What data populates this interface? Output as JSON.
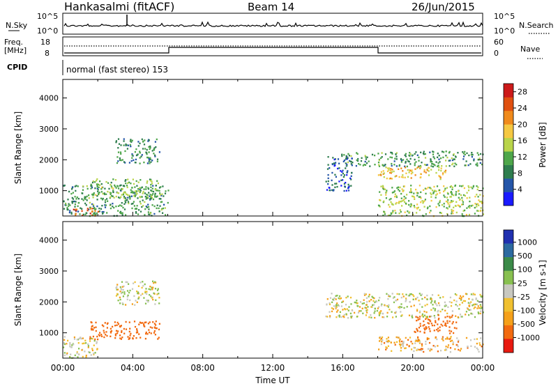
{
  "header": {
    "station": "Hankasalmi (fitACF)",
    "beam": "Beam 14",
    "date": "26/Jun/2015"
  },
  "noise_panel": {
    "left_label": "N.Sky",
    "left_ticks": [
      "10^5",
      "10^0"
    ],
    "right_ticks": [
      "10^5",
      "10^0"
    ],
    "right_label": "N.Search"
  },
  "freq_panel": {
    "left_label_1": "Freq.",
    "left_label_2": "[MHz]",
    "left_ticks": [
      "18",
      "8"
    ],
    "right_ticks": [
      "60",
      "0"
    ],
    "right_label": "Nave"
  },
  "cpid": {
    "label": "CPID",
    "text": "normal (fast stereo) 153"
  },
  "x_axis": {
    "ticks": [
      "00:00",
      "04:00",
      "08:00",
      "12:00",
      "16:00",
      "20:00",
      "00:00"
    ],
    "label": "Time UT"
  },
  "colors": {
    "power_scale": [
      "#1a1aff",
      "#2455a8",
      "#2e7d4e",
      "#4ea64a",
      "#b9d44a",
      "#f5c842",
      "#f08a1c",
      "#e05010",
      "#cc1a1a"
    ],
    "velocity_scale": [
      "#e81a10",
      "#f26a10",
      "#f5a01a",
      "#f0c030",
      "#c8c8c0",
      "#88c050",
      "#3b8a48",
      "#2c6aa0",
      "#2030b0"
    ]
  },
  "chart_data": [
    {
      "type": "heatmap",
      "title": "Power",
      "xlabel": "Time UT",
      "ylabel": "Slant Range [km]",
      "xlim": [
        "00:00",
        "24:00"
      ],
      "ylim": [
        180,
        4600
      ],
      "y_ticks": [
        "1000",
        "2000",
        "3000",
        "4000"
      ],
      "colorbar": {
        "label": "Power [dB]",
        "ticks": [
          "4",
          "8",
          "12",
          "16",
          "20",
          "24",
          "28"
        ],
        "range": [
          0,
          30
        ]
      },
      "echo_regions": [
        {
          "t_start": 0.0,
          "t_end": 6.0,
          "range_min": 200,
          "range_max": 1200,
          "power_db": 10
        },
        {
          "t_start": 0.5,
          "t_end": 2.0,
          "range_min": 200,
          "range_max": 450,
          "power_db": 24
        },
        {
          "t_start": 1.5,
          "t_end": 5.5,
          "range_min": 800,
          "range_max": 1400,
          "power_db": 13
        },
        {
          "t_start": 3.0,
          "t_end": 5.5,
          "range_min": 1900,
          "range_max": 2700,
          "power_db": 9
        },
        {
          "t_start": 15.0,
          "t_end": 16.5,
          "range_min": 1000,
          "range_max": 2200,
          "power_db": 6
        },
        {
          "t_start": 16.0,
          "t_end": 24.0,
          "range_min": 1800,
          "range_max": 2300,
          "power_db": 10
        },
        {
          "t_start": 18.0,
          "t_end": 22.0,
          "range_min": 1400,
          "range_max": 1800,
          "power_db": 18
        },
        {
          "t_start": 18.0,
          "t_end": 24.0,
          "range_min": 200,
          "range_max": 1200,
          "power_db": 14
        }
      ]
    },
    {
      "type": "heatmap",
      "title": "Velocity",
      "xlabel": "Time UT",
      "ylabel": "Slant Range [km]",
      "xlim": [
        "00:00",
        "24:00"
      ],
      "ylim": [
        180,
        4600
      ],
      "y_ticks": [
        "1000",
        "2000",
        "3000",
        "4000"
      ],
      "colorbar": {
        "label": "Velocity [m s-1]",
        "ticks": [
          "1000",
          "500",
          "100",
          "25",
          "-25",
          "-100",
          "-500",
          "-1000"
        ]
      },
      "echo_regions": [
        {
          "t_start": 0.0,
          "t_end": 2.0,
          "range_min": 200,
          "range_max": 900,
          "velocity": 0
        },
        {
          "t_start": 1.5,
          "t_end": 5.5,
          "range_min": 800,
          "range_max": 1400,
          "velocity": -200
        },
        {
          "t_start": 3.0,
          "t_end": 5.5,
          "range_min": 1900,
          "range_max": 2700,
          "velocity": 0
        },
        {
          "t_start": 15.0,
          "t_end": 24.0,
          "range_min": 1500,
          "range_max": 2300,
          "velocity": 0
        },
        {
          "t_start": 20.0,
          "t_end": 22.5,
          "range_min": 1000,
          "range_max": 1600,
          "velocity": -250
        },
        {
          "t_start": 18.0,
          "t_end": 24.0,
          "range_min": 400,
          "range_max": 900,
          "velocity": -50
        }
      ]
    }
  ]
}
